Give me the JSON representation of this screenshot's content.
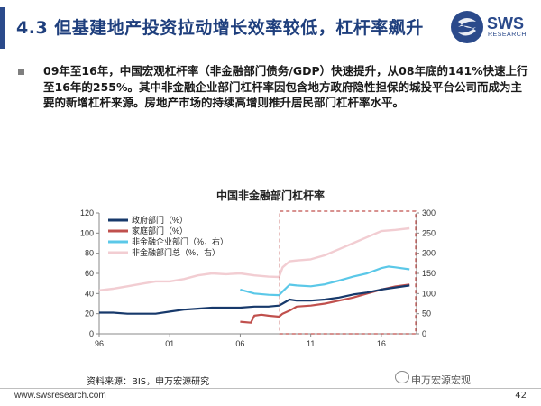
{
  "header": {
    "title": "4.3 但基建地产投资拉动增长效率较低，杠杆率飙升"
  },
  "logo": {
    "text": "SWS",
    "sub": "RESEARCH"
  },
  "bullet": {
    "text": "09年至16年，中国宏观杠杆率（非金融部门债务/GDP）快速提升，从08年底的141%快速上行至16年的255%。其中非金融企业部门杠杆率因包含地方政府隐性担保的城投平台公司而成为主要的新增杠杆来源。房地产市场的持续高增则推升居民部门杠杆率水平。"
  },
  "source": "资料来源：BIS，申万宏源研究",
  "footer": {
    "url": "www.swsresearch.com",
    "page": "42",
    "watermark": "申万宏源宏观"
  },
  "colors": {
    "gov": "#17396b",
    "household": "#c0504d",
    "corp": "#5bc8e8",
    "total": "#f2cdd2",
    "highlight": "#c0504d"
  },
  "chart_data": {
    "type": "line",
    "title": "中国非金融部门杠杆率",
    "ylim_left": [
      0,
      120
    ],
    "yticks_left": [
      0,
      20,
      40,
      60,
      80,
      100,
      120
    ],
    "ylim_right": [
      0,
      300
    ],
    "yticks_right": [
      0,
      50,
      100,
      150,
      200,
      250,
      300
    ],
    "xlim": [
      1996,
      2018.5
    ],
    "xticks": [
      {
        "label": "96",
        "x": 1996
      },
      {
        "label": "01",
        "x": 2001
      },
      {
        "label": "06",
        "x": 2006
      },
      {
        "label": "11",
        "x": 2011
      },
      {
        "label": "16",
        "x": 2016
      }
    ],
    "highlight_range": {
      "x": [
        2008.8,
        2018.5
      ],
      "y": [
        0,
        120
      ]
    },
    "series": [
      {
        "name": "政府部门（%）",
        "axis": "left",
        "x": [
          1996,
          1997,
          1998,
          1999,
          2000,
          2001,
          2002,
          2003,
          2004,
          2005,
          2006,
          2007,
          2008,
          2008.75,
          2009,
          2009.5,
          2010,
          2011,
          2012,
          2013,
          2014,
          2015,
          2016,
          2017,
          2018
        ],
        "y": [
          21,
          21,
          20,
          20,
          20,
          22,
          24,
          25,
          26,
          26,
          26,
          27,
          27,
          28,
          30,
          34,
          33,
          33,
          34,
          36,
          39,
          41,
          44,
          46,
          48
        ]
      },
      {
        "name": "家庭部门（%）",
        "axis": "left",
        "x": [
          2006,
          2006.75,
          2007,
          2007.5,
          2008,
          2008.75,
          2009,
          2009.5,
          2010,
          2011,
          2012,
          2013,
          2014,
          2015,
          2016,
          2017,
          2018
        ],
        "y": [
          12,
          11,
          18,
          19,
          18,
          17,
          20,
          23,
          27,
          28,
          30,
          33,
          36,
          40,
          44,
          47,
          49
        ]
      },
      {
        "name": "非金融企业部门（%，右）",
        "axis": "right",
        "x": [
          2006,
          2007,
          2008,
          2008.75,
          2009,
          2009.5,
          2010,
          2011,
          2012,
          2013,
          2014,
          2015,
          2016,
          2016.5,
          2017,
          2018
        ],
        "y": [
          110,
          100,
          97,
          96,
          105,
          122,
          120,
          118,
          123,
          132,
          142,
          150,
          163,
          167,
          165,
          160
        ]
      },
      {
        "name": "非金融部门总（%，右）",
        "axis": "right",
        "x": [
          1996,
          1997,
          1998,
          1999,
          2000,
          2001,
          2002,
          2003,
          2004,
          2005,
          2006,
          2007,
          2008,
          2008.75,
          2009,
          2009.5,
          2010,
          2011,
          2012,
          2013,
          2014,
          2015,
          2016,
          2017,
          2018
        ],
        "y": [
          108,
          112,
          118,
          124,
          130,
          130,
          136,
          145,
          150,
          148,
          150,
          145,
          142,
          141,
          165,
          180,
          182,
          185,
          195,
          210,
          225,
          240,
          255,
          258,
          262
        ]
      }
    ]
  }
}
